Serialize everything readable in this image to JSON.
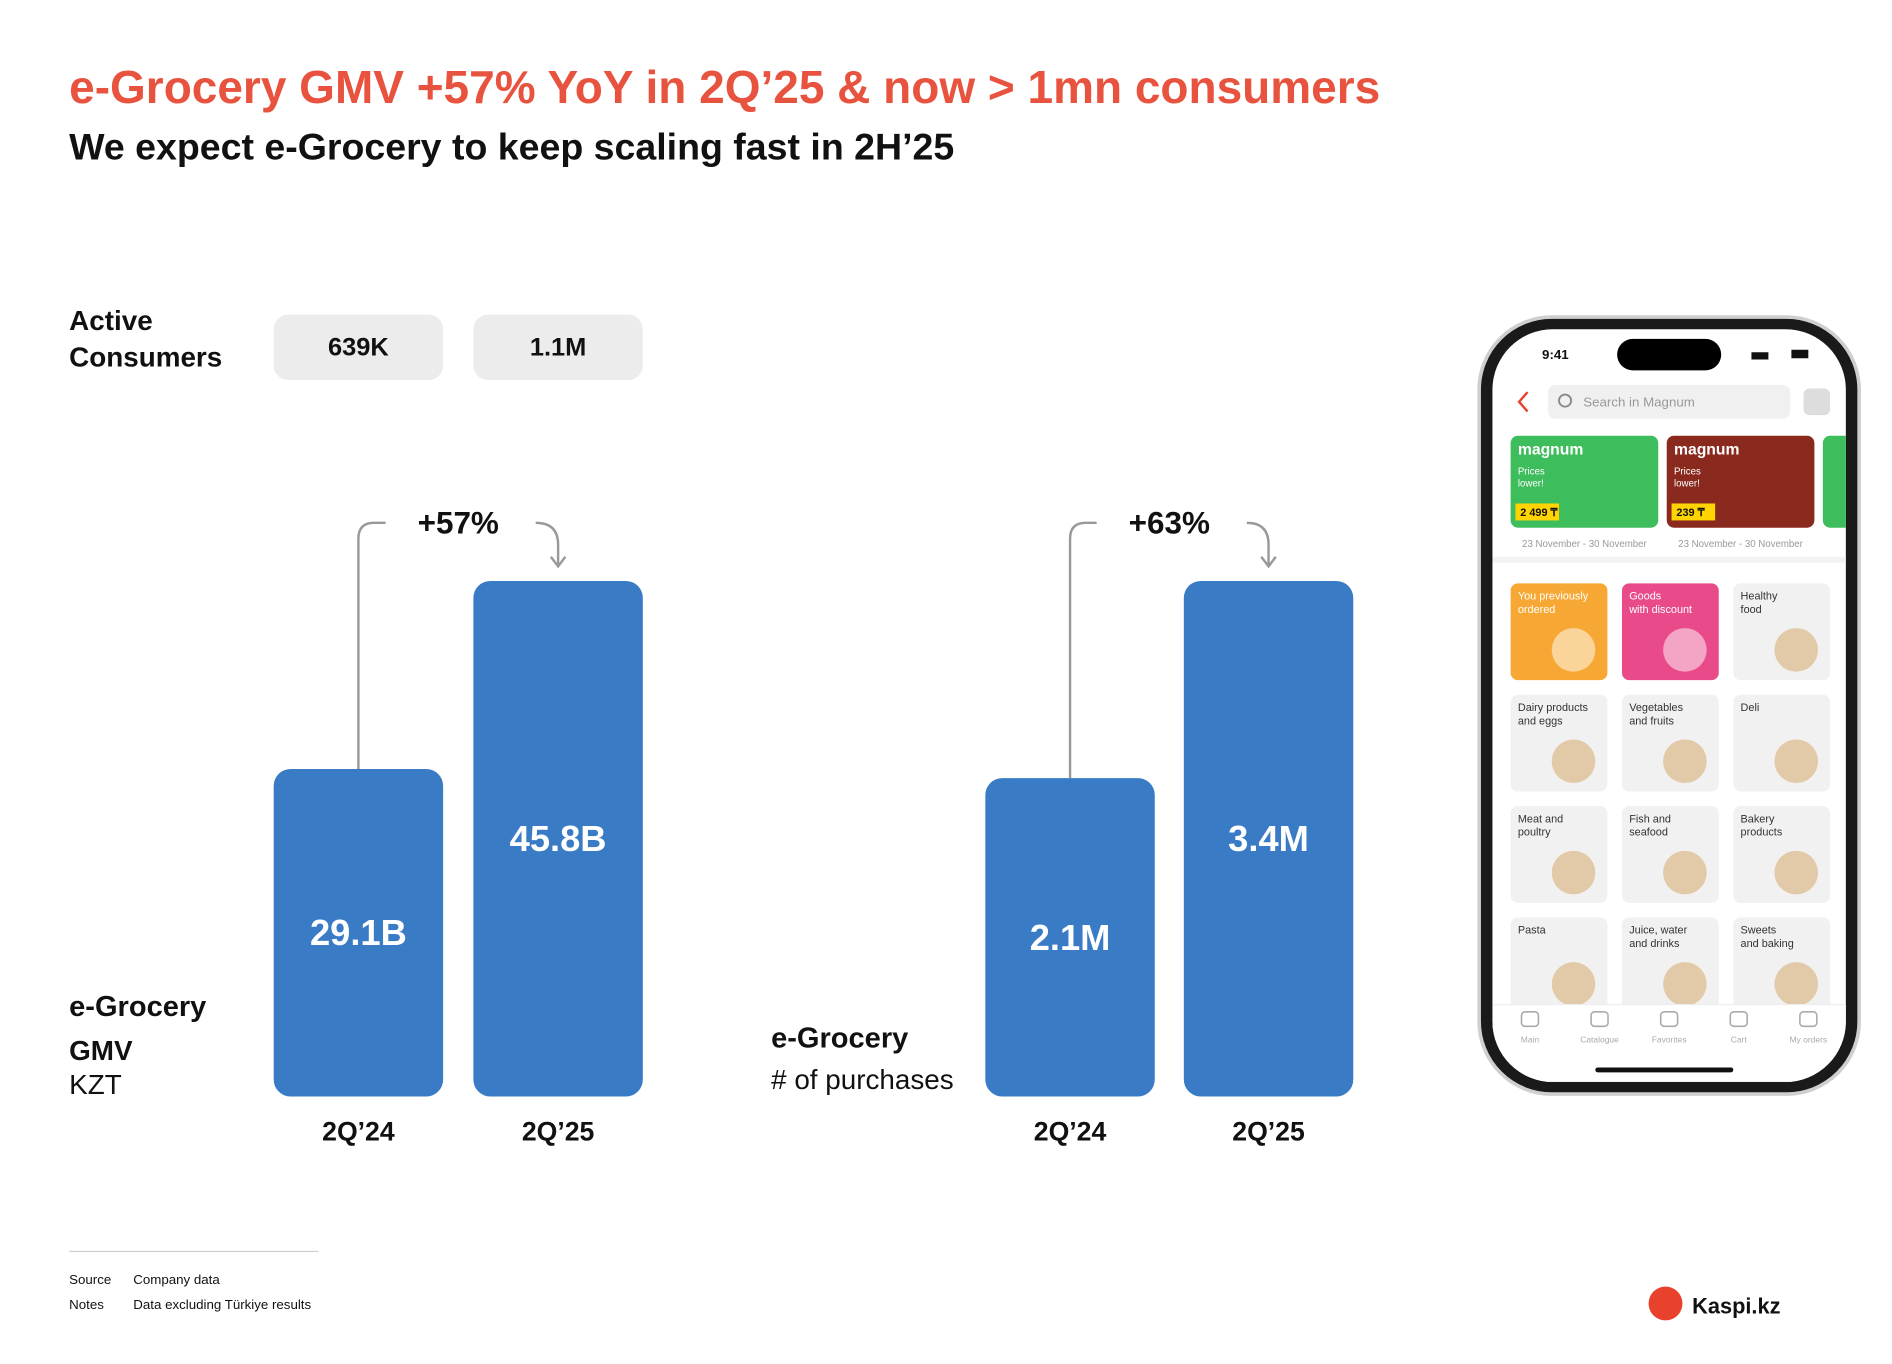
{
  "title": "e-Grocery GMV +57% YoY in 2Q’25 & now > 1mn consumers",
  "subtitle": "We expect e-Grocery to keep scaling fast in 2H’25",
  "active_consumers": {
    "label": [
      "Active",
      "Consumers"
    ],
    "values": [
      "639K",
      "1.1M"
    ]
  },
  "chart_data": [
    {
      "type": "bar",
      "title": "e-Grocery",
      "subtitle": "GMV",
      "unit": "KZT",
      "categories": [
        "2Q’24",
        "2Q’25"
      ],
      "values": [
        29.1,
        45.8
      ],
      "value_labels": [
        "29.1B",
        "45.8B"
      ],
      "growth": "+57%",
      "color": "#3a7bc6"
    },
    {
      "type": "bar",
      "title": "e-Grocery",
      "subtitle": "# of purchases",
      "categories": [
        "2Q’24",
        "2Q’25"
      ],
      "values": [
        2.1,
        3.4
      ],
      "value_labels": [
        "2.1M",
        "3.4M"
      ],
      "growth": "+63%",
      "color": "#3a7bc6"
    }
  ],
  "phone": {
    "time": "9:41",
    "search": "Search in Magnum",
    "banners": [
      {
        "brand": "magnum",
        "text": [
          "Prices",
          "lower!"
        ],
        "price": "2 499 ₸",
        "dates": "23 November - 30 November"
      },
      {
        "brand": "magnum",
        "text": [
          "Prices",
          "lower!"
        ],
        "price": "239 ₸",
        "dates": "23 November - 30 November"
      }
    ],
    "tiles": [
      [
        "You previously",
        "ordered"
      ],
      [
        "Goods",
        "with discount"
      ],
      [
        "Healthy",
        "food"
      ],
      [
        "Dairy products",
        "and eggs"
      ],
      [
        "Vegetables",
        "and fruits"
      ],
      [
        "Deli"
      ],
      [
        "Meat and",
        "poultry"
      ],
      [
        "Fish and",
        "seafood"
      ],
      [
        "Bakery",
        "products"
      ],
      [
        "Pasta"
      ],
      [
        "Juice, water",
        "and drinks"
      ],
      [
        "Sweets",
        "and baking"
      ]
    ],
    "tabs": [
      "Main",
      "Catalogue",
      "Favorites",
      "Cart",
      "My orders"
    ]
  },
  "footer": {
    "source_label": "Source",
    "source": "Company data",
    "notes_label": "Notes",
    "notes": "Data excluding Türkiye results",
    "logo": "Kaspi.kz"
  }
}
